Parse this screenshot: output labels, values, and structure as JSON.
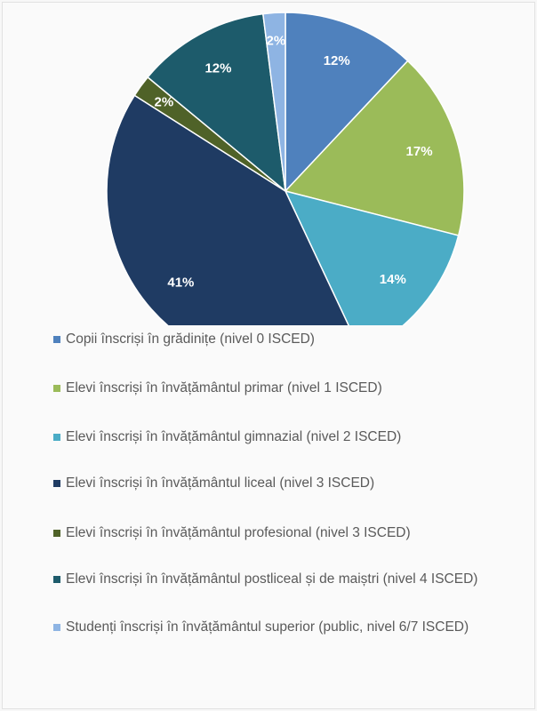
{
  "chart_data": {
    "type": "pie",
    "categories": [
      "Copii înscriși în grădinițe (nivel 0 ISCED)",
      "Elevi înscriși în învățământul primar (nivel 1 ISCED)",
      "Elevi înscriși în învățământul gimnazial (nivel 2 ISCED)",
      "Elevi înscriși în învățământul liceal (nivel 3 ISCED)",
      "Elevi înscriși în învățământul profesional (nivel 3 ISCED)",
      "Elevi înscriși în învățământul postliceal și de maiștri (nivel 4 ISCED)",
      "Studenți înscriși în învățământul superior (public, nivel 6/7 ISCED)"
    ],
    "values": [
      12,
      17,
      14,
      41,
      2,
      12,
      2
    ],
    "value_labels": [
      "12%",
      "17%",
      "14%",
      "41%",
      "2%",
      "12%",
      "2%"
    ],
    "colors": [
      "#4f81bd",
      "#9bbb59",
      "#4bacc6",
      "#1f3b63",
      "#4f6228",
      "#1d5b6b",
      "#8eb4e3"
    ],
    "legend": "bottom"
  }
}
